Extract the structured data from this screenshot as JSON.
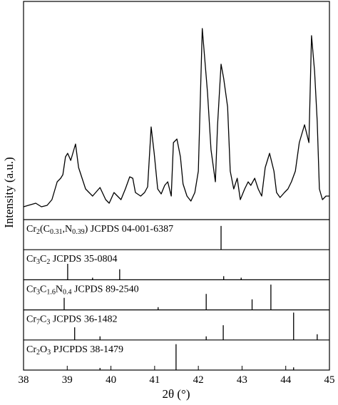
{
  "chart_data": {
    "type": "line",
    "xlabel": "2θ (°)",
    "ylabel": "Intensity (a.u.)",
    "color": "#000000",
    "xlim": [
      38,
      45
    ],
    "xticks": [
      38,
      39,
      40,
      41,
      42,
      43,
      44,
      45
    ],
    "ylim": [
      0,
      306
    ],
    "x": [
      38.0,
      38.11,
      38.28,
      38.41,
      38.54,
      38.65,
      38.77,
      38.85,
      38.9,
      38.96,
      39.01,
      39.08,
      39.19,
      39.26,
      39.34,
      39.42,
      39.5,
      39.58,
      39.75,
      39.88,
      39.96,
      40.07,
      40.15,
      40.23,
      40.33,
      40.43,
      40.5,
      40.56,
      40.68,
      40.77,
      40.84,
      40.92,
      40.99,
      41.07,
      41.15,
      41.23,
      41.3,
      41.38,
      41.43,
      41.51,
      41.59,
      41.65,
      41.74,
      41.83,
      41.92,
      42.0,
      42.09,
      42.21,
      42.29,
      42.39,
      42.44,
      42.52,
      42.58,
      42.67,
      42.73,
      42.81,
      42.89,
      42.96,
      43.06,
      43.14,
      43.2,
      43.29,
      43.37,
      43.45,
      43.53,
      43.63,
      43.73,
      43.79,
      43.87,
      43.97,
      44.05,
      44.13,
      44.22,
      44.31,
      44.43,
      44.53,
      44.59,
      44.66,
      44.72,
      44.77,
      44.84,
      44.92,
      45.0
    ],
    "values": [
      18,
      20,
      23,
      18,
      20,
      28,
      53,
      58,
      63,
      88,
      93,
      83,
      106,
      73,
      58,
      43,
      38,
      33,
      45,
      28,
      23,
      38,
      33,
      28,
      43,
      60,
      58,
      38,
      33,
      38,
      46,
      130,
      93,
      43,
      36,
      48,
      53,
      33,
      108,
      113,
      88,
      50,
      33,
      26,
      38,
      68,
      268,
      178,
      98,
      53,
      133,
      218,
      198,
      158,
      68,
      43,
      58,
      28,
      43,
      53,
      48,
      58,
      43,
      33,
      73,
      93,
      68,
      38,
      31,
      38,
      43,
      53,
      68,
      108,
      133,
      108,
      258,
      208,
      138,
      43,
      28,
      33,
      33
    ],
    "reference_ylim": [
      0,
      100
    ],
    "references": [
      {
        "label": [
          "Cr",
          "2",
          "(C",
          "0.31",
          ",N",
          "0.39",
          ") JCPDS 04-001-6387"
        ],
        "positions": [
          42.52
        ],
        "intensities": [
          79
        ]
      },
      {
        "label": [
          "Cr",
          "3",
          "C",
          "2",
          " JCPDS 35-0804"
        ],
        "positions": [
          39.01,
          39.58,
          40.2,
          42.58,
          42.98
        ],
        "intensities": [
          53,
          7,
          35,
          12,
          7
        ]
      },
      {
        "label": [
          "Cr",
          "3",
          "C",
          "1.6",
          "N",
          "0.4",
          " JCPDS 89-2540"
        ],
        "positions": [
          38.93,
          41.08,
          42.18,
          43.23,
          43.66
        ],
        "intensities": [
          40,
          9,
          53,
          35,
          84
        ]
      },
      {
        "label": [
          "Cr",
          "7",
          "C",
          "3",
          " JCPDS 36-1482"
        ],
        "positions": [
          39.17,
          39.75,
          42.18,
          42.57,
          44.18,
          44.72
        ],
        "intensities": [
          42,
          12,
          12,
          49,
          91,
          19
        ]
      },
      {
        "label": [
          "Cr",
          "2",
          "O",
          "3",
          " PJCPDS 38-1479"
        ],
        "positions": [
          39.75,
          41.49,
          44.18
        ],
        "intensities": [
          7,
          86,
          9
        ]
      }
    ]
  }
}
